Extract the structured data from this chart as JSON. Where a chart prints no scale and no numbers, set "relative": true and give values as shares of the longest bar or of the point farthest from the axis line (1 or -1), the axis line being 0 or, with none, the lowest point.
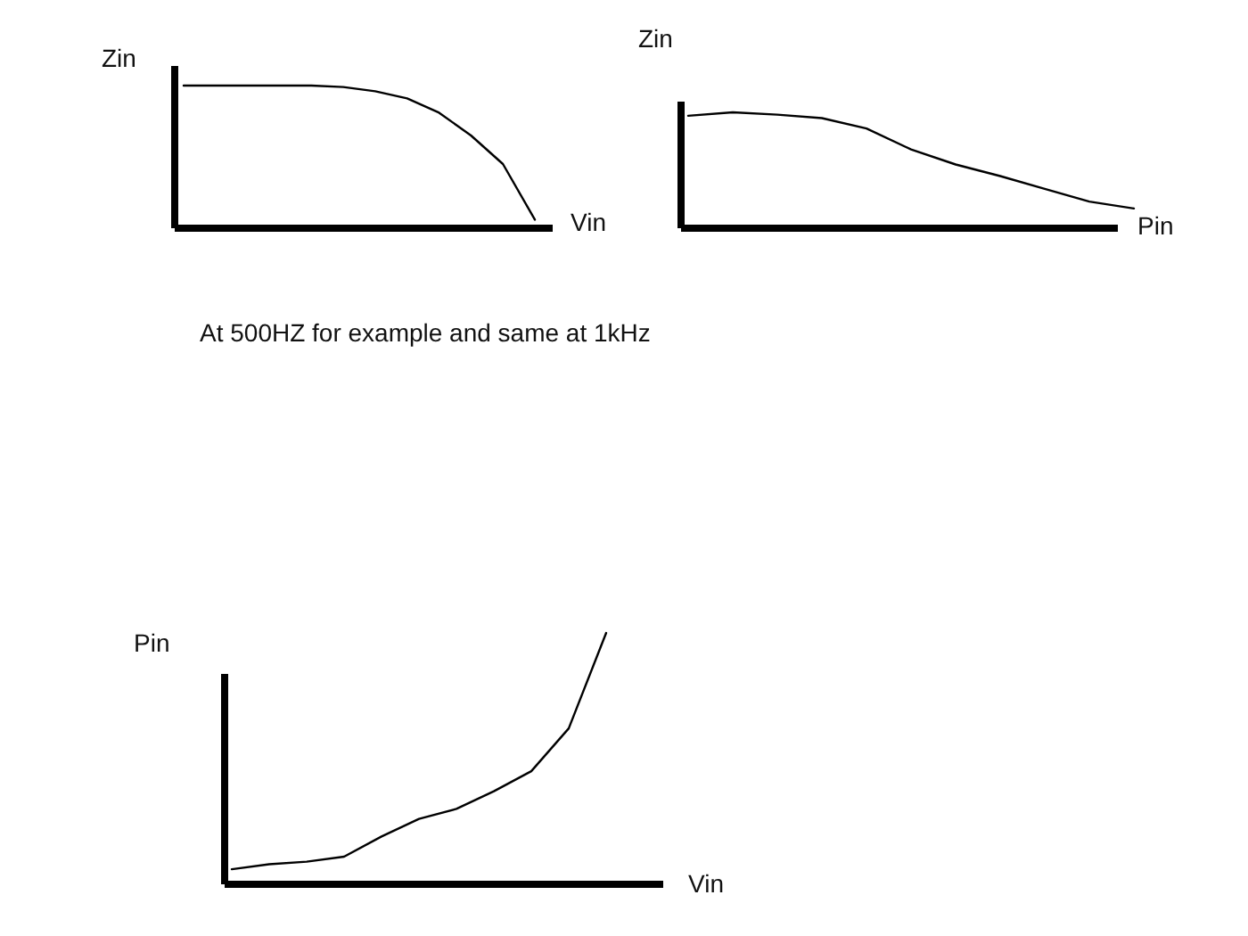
{
  "chart_data": [
    {
      "type": "line",
      "relative": true,
      "ylabel": "Zin",
      "xlabel": "Vin",
      "categories": [
        null,
        null,
        null,
        null,
        null,
        null,
        null,
        null,
        null,
        null,
        null,
        null
      ],
      "series": [
        {
          "color": "#000000",
          "values": [
            1,
            1,
            1,
            1,
            1,
            0.99,
            0.96,
            0.91,
            0.81,
            0.65,
            0.45,
            0.06
          ]
        }
      ],
      "annotations": [
        "At 500HZ for example and same at 1kHz"
      ]
    },
    {
      "type": "line",
      "relative": true,
      "ylabel": "Zin",
      "xlabel": "Pin",
      "categories": [
        null,
        null,
        null,
        null,
        null,
        null,
        null,
        null,
        null,
        null,
        null
      ],
      "series": [
        {
          "color": "#000000",
          "values": [
            0.97,
            1,
            0.98,
            0.95,
            0.86,
            0.68,
            0.55,
            0.45,
            0.34,
            0.23,
            0.17
          ]
        }
      ]
    },
    {
      "type": "line",
      "relative": true,
      "ylabel": "Pin",
      "xlabel": "Vin",
      "categories": [
        null,
        null,
        null,
        null,
        null,
        null,
        null,
        null,
        null,
        null,
        null
      ],
      "series": [
        {
          "color": "#000000",
          "values": [
            0.06,
            0.08,
            0.09,
            0.11,
            0.19,
            0.26,
            0.3,
            0.37,
            0.45,
            0.62,
            1
          ]
        }
      ]
    }
  ]
}
